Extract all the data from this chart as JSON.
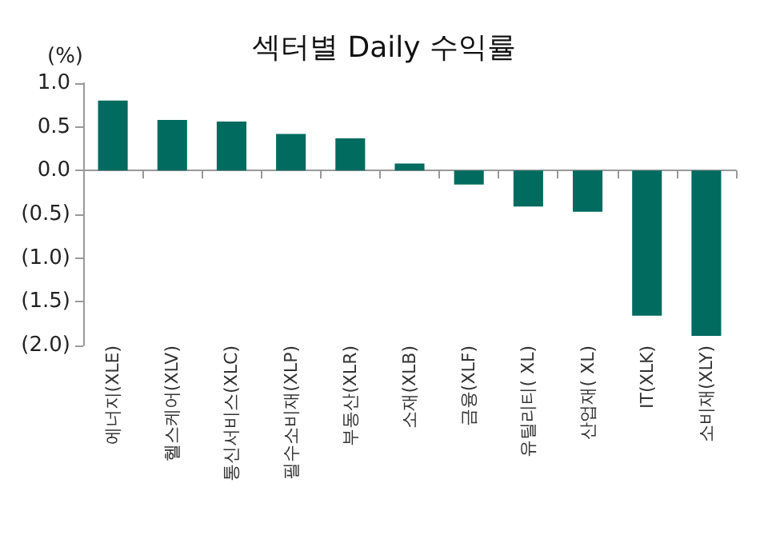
{
  "chart_data": {
    "type": "bar",
    "title": "섹터별 Daily 수익률",
    "ylabel": "(%)",
    "categories": [
      "에너지(XLE)",
      "헬스케어(XLV)",
      "통신서비스(XLC)",
      "필수소비재(XLP)",
      "부동산(XLR)",
      "소재(XLB)",
      "금융(XLF)",
      "유틸리티( XL)",
      "산업재( XL)",
      "IT(XLK)",
      "소비재(XLY)"
    ],
    "values": [
      0.8,
      0.58,
      0.56,
      0.42,
      0.37,
      0.08,
      -0.16,
      -0.41,
      -0.47,
      -1.66,
      -1.89
    ],
    "color": "#006b5e",
    "ylim": [
      -2,
      1
    ],
    "yticks": [
      {
        "value": -2,
        "label": "(2.0)"
      },
      {
        "value": -1.5,
        "label": "(1.5)"
      },
      {
        "value": -1,
        "label": "(1.0)"
      },
      {
        "value": -0.5,
        "label": "(0.5)"
      },
      {
        "value": 0,
        "label": "0.0"
      },
      {
        "value": 0.5,
        "label": "0.5"
      },
      {
        "value": 1,
        "label": "1.0"
      }
    ]
  }
}
